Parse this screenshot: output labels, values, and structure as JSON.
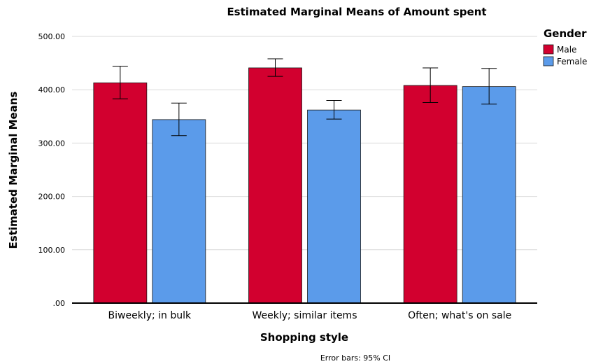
{
  "chart_data": {
    "type": "bar",
    "title": "Estimated Marginal Means of Amount spent",
    "xlabel": "Shopping style",
    "ylabel": "Estimated Marginal Means",
    "categories": [
      "Biweekly; in bulk",
      "Weekly; similar items",
      "Often; what's on sale"
    ],
    "series": [
      {
        "name": "Male",
        "color": "#d2002f",
        "values": [
          413,
          441,
          408
        ],
        "ci_low": [
          383,
          425,
          376
        ],
        "ci_high": [
          444,
          458,
          441
        ]
      },
      {
        "name": "Female",
        "color": "#5b9bea",
        "values": [
          344,
          362,
          406
        ],
        "ci_low": [
          314,
          345,
          373
        ],
        "ci_high": [
          375,
          380,
          440
        ]
      }
    ],
    "ylim": [
      0,
      500
    ],
    "yticks": [
      0,
      100,
      200,
      300,
      400,
      500
    ],
    "ytick_labels": [
      ".00",
      "100.00",
      "200.00",
      "300.00",
      "400.00",
      "500.00"
    ],
    "grid": true,
    "legend": {
      "title": "Gender",
      "position": "top-right"
    },
    "footnote": "Error bars: 95% CI"
  }
}
